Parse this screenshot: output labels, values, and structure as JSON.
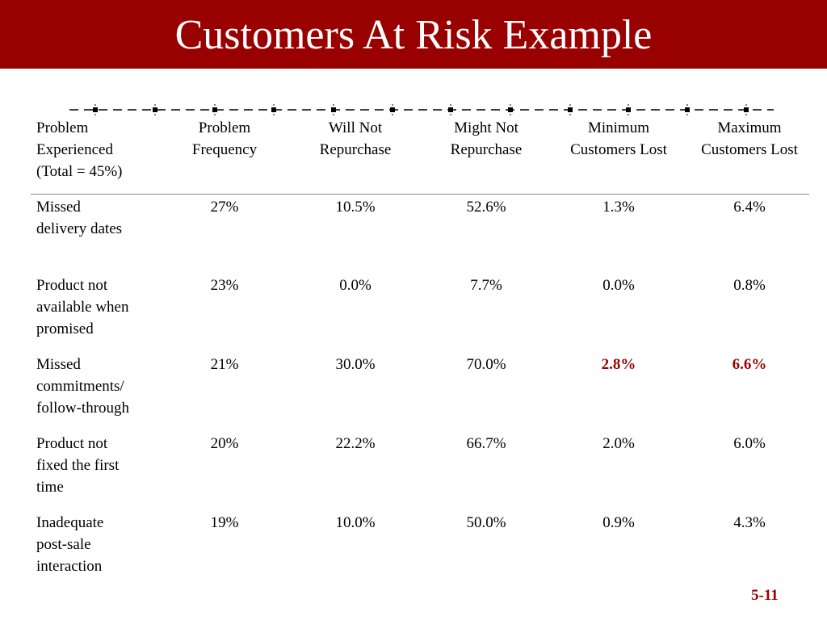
{
  "slide": {
    "title": "Customers At Risk Example",
    "number": "5-11",
    "accent_color": "#990000"
  },
  "table": {
    "headers": [
      [
        "Problem",
        "Experienced",
        "(Total = 45%)"
      ],
      [
        "Problem",
        "Frequency"
      ],
      [
        "Will Not",
        "Repurchase"
      ],
      [
        "Might Not",
        "Repurchase"
      ],
      [
        "Minimum",
        "Customers Lost"
      ],
      [
        "Maximum",
        "Customers Lost"
      ]
    ],
    "rows": [
      {
        "problem": [
          "Missed",
          "delivery dates"
        ],
        "frequency": "27%",
        "will_not": "10.5%",
        "might_not": "52.6%",
        "min_lost": "1.3%",
        "max_lost": "6.4%",
        "highlight": false
      },
      {
        "problem": [
          "Product not",
          "available when",
          "promised"
        ],
        "frequency": "23%",
        "will_not": "0.0%",
        "might_not": "7.7%",
        "min_lost": "0.0%",
        "max_lost": "0.8%",
        "highlight": false
      },
      {
        "problem": [
          "Missed",
          "commitments/",
          "follow-through"
        ],
        "frequency": "21%",
        "will_not": "30.0%",
        "might_not": "70.0%",
        "min_lost": "2.8%",
        "max_lost": "6.6%",
        "highlight": true
      },
      {
        "problem": [
          "Product not",
          "fixed the first",
          "time"
        ],
        "frequency": "20%",
        "will_not": "22.2%",
        "might_not": "66.7%",
        "min_lost": "2.0%",
        "max_lost": "6.0%",
        "highlight": false
      },
      {
        "problem": [
          "Inadequate",
          "post-sale",
          "interaction"
        ],
        "frequency": "19%",
        "will_not": "10.0%",
        "might_not": "50.0%",
        "min_lost": "0.9%",
        "max_lost": "4.3%",
        "highlight": false
      }
    ]
  }
}
